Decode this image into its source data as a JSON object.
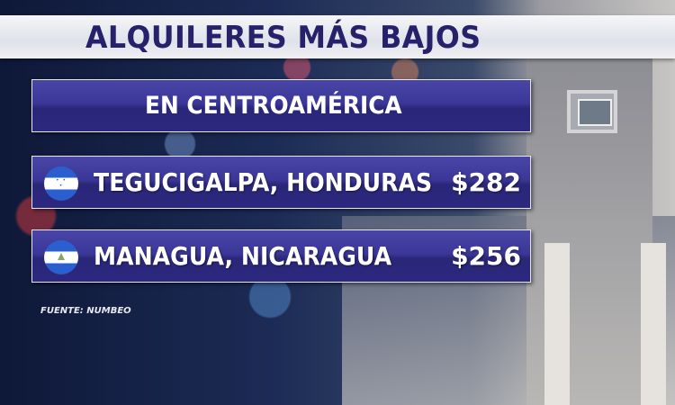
{
  "title": "ALQUILERES MÁS BAJOS",
  "subtitle": "EN CENTROAMÉRICA",
  "rows": [
    {
      "city": "TEGUCIGALPA, HONDURAS",
      "price": "$282",
      "flag": "honduras-flag"
    },
    {
      "city": "MANAGUA, NICARAGUA",
      "price": "$256",
      "flag": "nicaragua-flag"
    }
  ],
  "source": "FUENTE: NUMBEO",
  "colors": {
    "panel": "#3b3798",
    "title_text": "#27206a",
    "flag_blue": "#2b5fd0"
  }
}
